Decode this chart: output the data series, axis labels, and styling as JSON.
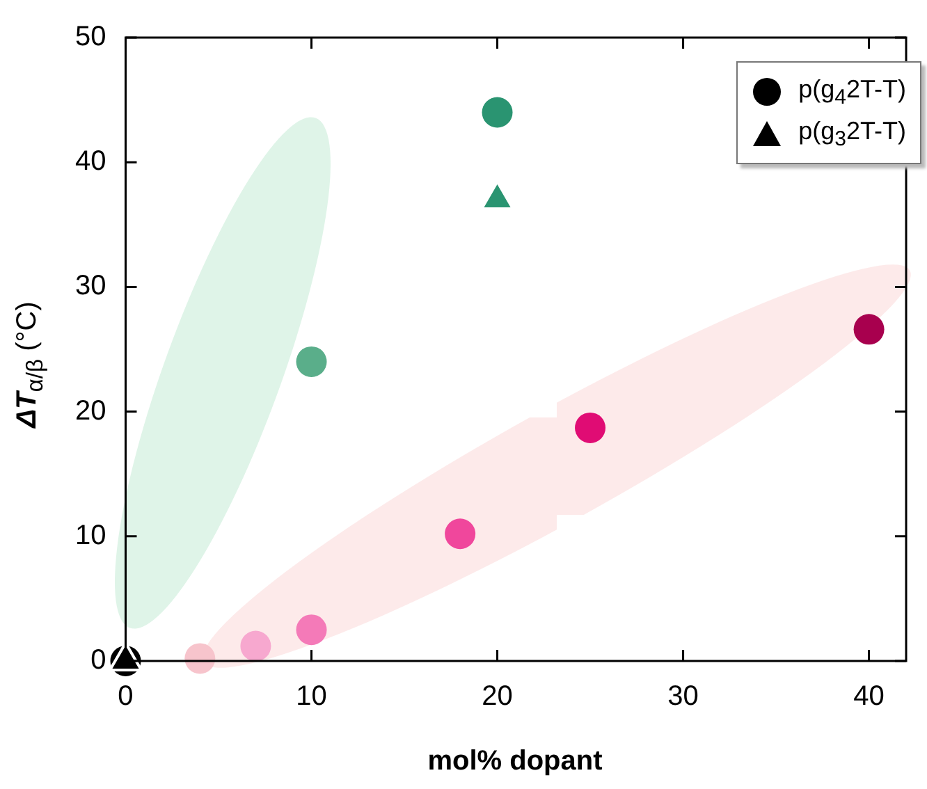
{
  "chart_data": {
    "type": "scatter",
    "xlabel": "mol% dopant",
    "ylabel": "ΔT$_{α/β}$ (°C)",
    "xlim": [
      0,
      42
    ],
    "xticks": [
      0,
      10,
      20,
      30,
      40
    ],
    "ylim": [
      0,
      50
    ],
    "yticks": [
      0,
      10,
      20,
      30,
      40,
      50
    ],
    "legend": "top right",
    "series": [
      {
        "name": "p(g$_{4}$2T-T)",
        "marker": "circle",
        "color": "#000000",
        "x": [
          0,
          4,
          7,
          10,
          18,
          25,
          40,
          10,
          20
        ],
        "values": [
          0,
          0.2,
          1.2,
          2.5,
          10.2,
          18.7,
          26.6,
          24,
          44
        ],
        "colors": [
          "#000000",
          "#f7c4cc",
          "#f7a8cf",
          "#f47ab8",
          "#f0479c",
          "#e00c74",
          "#a8004e",
          "#5aae8a",
          "#2a9471"
        ]
      },
      {
        "name": "p(g$_{3}$2T-T)",
        "marker": "triangle",
        "color": "#000000",
        "x": [
          0,
          20
        ],
        "values": [
          0,
          37
        ],
        "colors": [
          "#000000",
          "#2a9471"
        ]
      }
    ]
  }
}
